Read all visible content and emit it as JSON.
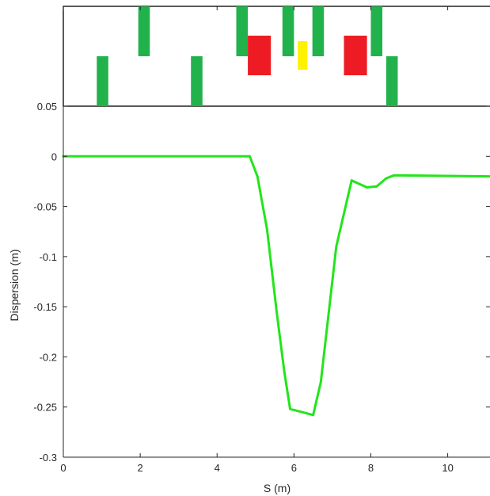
{
  "chart_data": {
    "type": "line",
    "title": "",
    "xlabel": "S (m)",
    "ylabel": "Dispersion (m)",
    "xlim": [
      0,
      11.1
    ],
    "ylim": [
      -0.3,
      0.05
    ],
    "x_ticks": [
      0,
      2,
      4,
      6,
      8,
      10
    ],
    "y_ticks": [
      0.05,
      0,
      -0.05,
      -0.1,
      -0.15,
      -0.2,
      -0.25,
      -0.3
    ],
    "x_tick_labels": [
      "0",
      "2",
      "4",
      "6",
      "8",
      "10"
    ],
    "y_tick_labels": [
      "0.05",
      "0",
      "-0.05",
      "-0.1",
      "-0.15",
      "-0.2",
      "-0.25",
      "-0.3"
    ],
    "grid": false,
    "line_color": "#22e51a",
    "series": [
      {
        "x": [
          0,
          4.85,
          5.05,
          5.3,
          5.55,
          5.75,
          5.9,
          6.5,
          6.7,
          7.1,
          7.5,
          7.9,
          8.15,
          8.4,
          8.6,
          11.1
        ],
        "y": [
          0,
          0,
          -0.02,
          -0.073,
          -0.155,
          -0.215,
          -0.252,
          -0.258,
          -0.225,
          -0.09,
          -0.024,
          -0.031,
          -0.03,
          -0.022,
          -0.019,
          -0.02
        ]
      }
    ],
    "lattice": {
      "colors": {
        "quadrupole": "#22b24c",
        "dipole": "#ed1c24",
        "sextupole": "#fff200"
      },
      "quadrupoles": [
        {
          "s_start": 0.87,
          "s_end": 1.17,
          "polarity": "defocusing"
        },
        {
          "s_start": 1.95,
          "s_end": 2.25,
          "polarity": "focusing"
        },
        {
          "s_start": 3.32,
          "s_end": 3.62,
          "polarity": "defocusing"
        },
        {
          "s_start": 4.5,
          "s_end": 4.8,
          "polarity": "focusing"
        },
        {
          "s_start": 5.7,
          "s_end": 6.0,
          "polarity": "focusing"
        },
        {
          "s_start": 6.48,
          "s_end": 6.78,
          "polarity": "focusing"
        },
        {
          "s_start": 8.0,
          "s_end": 8.3,
          "polarity": "focusing"
        },
        {
          "s_start": 8.4,
          "s_end": 8.7,
          "polarity": "defocusing"
        }
      ],
      "dipoles": [
        {
          "s_start": 4.8,
          "s_end": 5.4
        },
        {
          "s_start": 7.3,
          "s_end": 7.9
        }
      ],
      "sextupoles": [
        {
          "s_start": 6.1,
          "s_end": 6.35
        }
      ]
    }
  }
}
